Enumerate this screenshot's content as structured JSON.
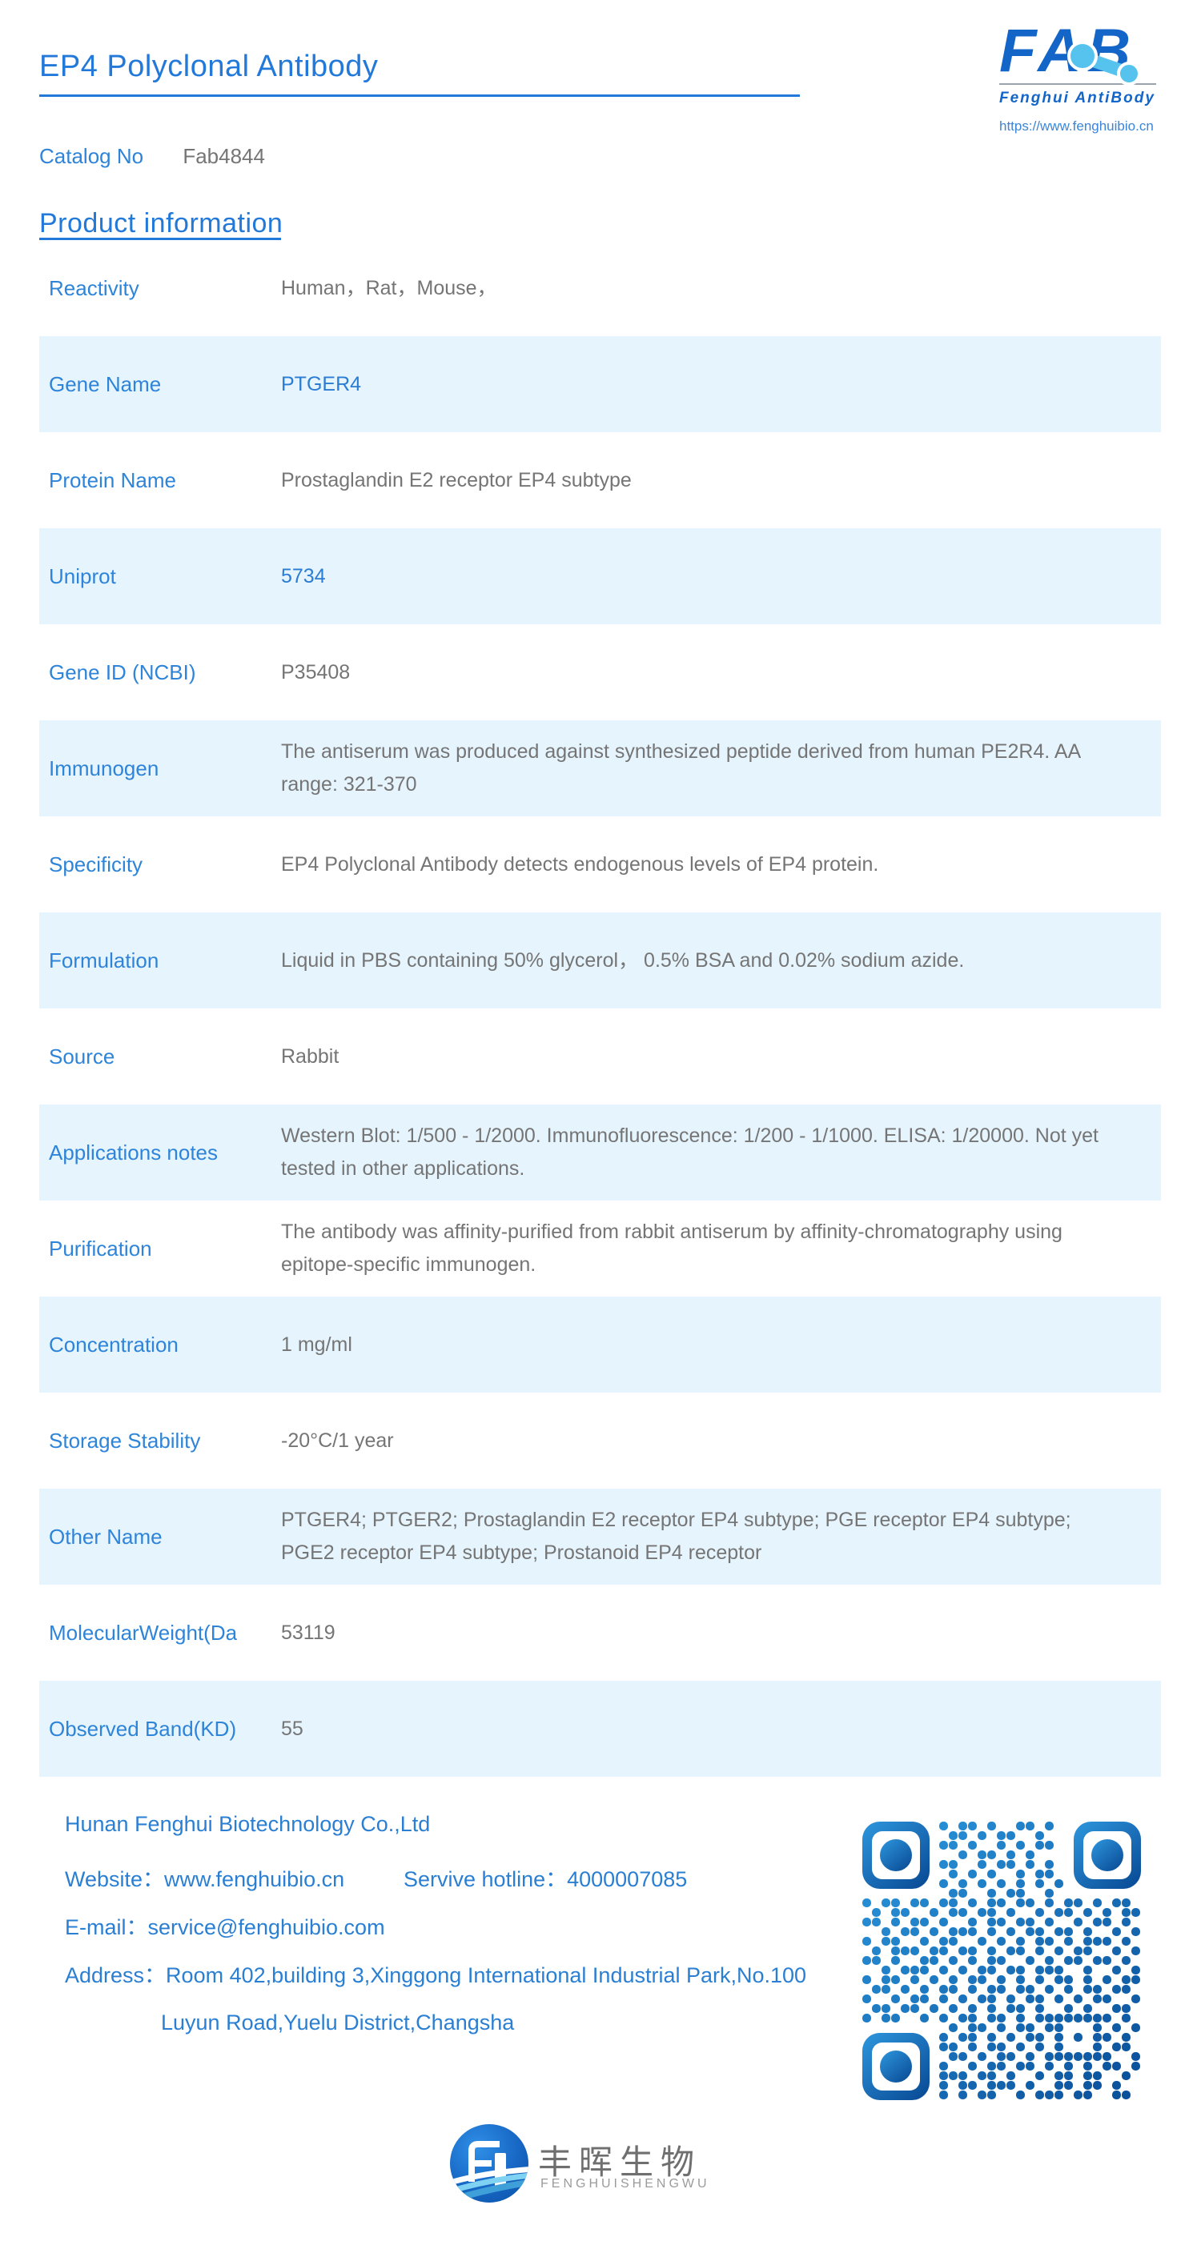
{
  "header": {
    "title": "EP4 Polyclonal Antibody",
    "catalog_label": "Catalog No",
    "catalog_value": "Fab4844",
    "logo": {
      "fab": "FAB",
      "name": "Fenghui AntiBody",
      "url": "https://www.fenghuibio.cn"
    }
  },
  "section": {
    "title": "Product information"
  },
  "table": {
    "rows": [
      {
        "label": "Reactivity",
        "value": "Human，Rat，Mouse，"
      },
      {
        "label": "Gene Name",
        "value": "PTGER4"
      },
      {
        "label": "Protein Name",
        "value": "Prostaglandin E2 receptor EP4 subtype"
      },
      {
        "label": "Uniprot",
        "value": "5734"
      },
      {
        "label": "Gene ID (NCBI)",
        "value": "P35408"
      },
      {
        "label": "Immunogen",
        "value": "The antiserum was produced against synthesized peptide derived from human PE2R4. AA range: 321-370"
      },
      {
        "label": "Specificity",
        "value": "EP4 Polyclonal Antibody detects endogenous levels of EP4 protein."
      },
      {
        "label": "Formulation",
        "value": "Liquid in PBS containing 50% glycerol， 0.5% BSA and 0.02% sodium azide."
      },
      {
        "label": "Source",
        "value": "Rabbit"
      },
      {
        "label": "Applications notes",
        "value": "Western Blot: 1/500 - 1/2000. Immunofluorescence: 1/200 - 1/1000. ELISA: 1/20000. Not yet tested in other applications."
      },
      {
        "label": "Purification",
        "value": "The antibody was affinity-purified from rabbit antiserum by affinity-chromatography using epitope-specific immunogen."
      },
      {
        "label": "Concentration",
        "value": "1 mg/ml"
      },
      {
        "label": "Storage Stability",
        "value": "-20°C/1 year"
      },
      {
        "label": "Other Name",
        "value": "PTGER4; PTGER2; Prostaglandin E2 receptor EP4 subtype; PGE receptor EP4 subtype; PGE2 receptor EP4 subtype; Prostanoid EP4 receptor"
      },
      {
        "label": "MolecularWeight(Da",
        "value": "53119"
      },
      {
        "label": "Observed Band(KD)",
        "value": "55"
      }
    ]
  },
  "footer": {
    "company": "Hunan Fenghui Biotechnology Co.,Ltd",
    "website": "Website：www.fenghuibio.cn",
    "hotline": "Servive hotline：4000007085",
    "email": "E-mail：service@fenghuibio.com",
    "address_line1": "Address：Room 402,building 3,Xinggong International Industrial Park,No.100",
    "address_line2": "Luyun Road,Yuelu District,Changsha"
  },
  "branding": {
    "cn_name": "丰晖生物",
    "en_name": "FENGHUISHENGWU"
  },
  "colors": {
    "accent_blue": "#2379d9",
    "label_blue": "#2e84d8",
    "link_blue": "#2b7cd3",
    "value_gray": "#757575",
    "row_alt_bg": "#e6f4fd",
    "footer_blue": "#2a7fd3",
    "logo_navy": "#1465c8",
    "logo_light_blue": "#55c3ee",
    "qr_blue_dark": "#0b4f9a",
    "qr_blue_light": "#2e97dd"
  },
  "qr": {
    "matrix": [
      "00000000101101001101000000000",
      "00000000011010110010000000000",
      "00000000110100101011000000000",
      "00000000001011010100000000000",
      "00000000110010110101000000000",
      "00000000010101001011000000000",
      "00000000101010101010100000000",
      "00000000011001011001000000000",
      "10110110110101101101011010110",
      "01011001011011010010110101011",
      "11010110100101101101001011010",
      "00101101011101010110110100101",
      "10110010110010101011010111010",
      "01011101101101011010101100101",
      "11010011010101100101011011010",
      "00101110101011011011100100101",
      "10110101010110101010110101011",
      "01101010110101101101010110110",
      "10010110101011010110101011001",
      "01101101010101011010010100110",
      "10110010101101101011111111010",
      "00000000010110101101100010101",
      "00000000101101010110101011010",
      "00000000110101101010100010110",
      "00000000011010110101111111001",
      "00000000100101101101010101101",
      "00000000111011010010110110010",
      "00000000101101110100110110100",
      "00000000101011001011101100110"
    ]
  }
}
